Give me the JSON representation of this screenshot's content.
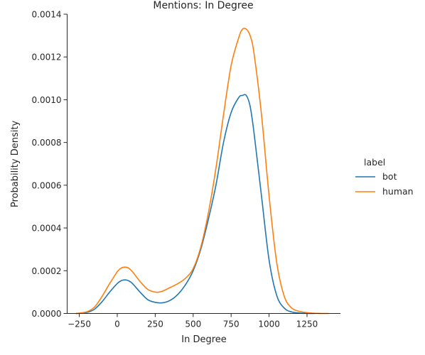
{
  "chart_data": {
    "type": "line",
    "title": "Mentions: In Degree",
    "xlabel": "In Degree",
    "ylabel": "Probability Density",
    "xlim": [
      -330,
      1470
    ],
    "ylim": [
      0,
      0.0014
    ],
    "x_ticks": [
      -250,
      0,
      250,
      500,
      750,
      1000,
      1250
    ],
    "x_tick_labels": [
      "−250",
      "0",
      "250",
      "500",
      "750",
      "1000",
      "1250"
    ],
    "y_ticks": [
      0,
      0.0002,
      0.0004,
      0.0006,
      0.0008,
      0.001,
      0.0012,
      0.0014
    ],
    "y_tick_labels": [
      "0.0000",
      "0.0002",
      "0.0004",
      "0.0006",
      "0.0008",
      "0.0010",
      "0.0012",
      "0.0014"
    ],
    "grid": false,
    "legend": {
      "title": "label",
      "placement": "right"
    },
    "series": [
      {
        "name": "bot",
        "color": "#1f77b4",
        "x": [
          -270,
          -200,
          -150,
          -100,
          -50,
          0,
          25,
          50,
          75,
          100,
          150,
          200,
          250,
          300,
          350,
          400,
          450,
          500,
          550,
          600,
          650,
          700,
          750,
          800,
          825,
          850,
          875,
          900,
          950,
          1000,
          1050,
          1100,
          1150,
          1200,
          1250,
          1300
        ],
        "y": [
          0.0,
          5e-06,
          2e-05,
          5.5e-05,
          0.0001,
          0.00014,
          0.000153,
          0.000157,
          0.000153,
          0.00014,
          0.0001,
          6.5e-05,
          5.2e-05,
          5e-05,
          6.2e-05,
          9e-05,
          0.000135,
          0.0002,
          0.0003,
          0.00044,
          0.0006,
          0.0008,
          0.00094,
          0.00101,
          0.00102,
          0.00102,
          0.00097,
          0.00085,
          0.00055,
          0.00025,
          8.5e-05,
          2.5e-05,
          7e-06,
          2e-06,
          5e-07,
          0.0
        ]
      },
      {
        "name": "human",
        "color": "#ff7f0e",
        "x": [
          -270,
          -200,
          -150,
          -100,
          -50,
          0,
          25,
          50,
          75,
          100,
          150,
          200,
          250,
          275,
          300,
          350,
          400,
          450,
          500,
          550,
          600,
          650,
          700,
          750,
          800,
          825,
          850,
          875,
          900,
          950,
          1000,
          1050,
          1100,
          1150,
          1200,
          1250,
          1300,
          1350,
          1390
        ],
        "y": [
          0.0,
          8e-06,
          3e-05,
          8e-05,
          0.00014,
          0.000195,
          0.000212,
          0.000217,
          0.000212,
          0.000195,
          0.00015,
          0.000113,
          0.0001,
          0.0001,
          0.000105,
          0.000122,
          0.00014,
          0.000165,
          0.00021,
          0.00031,
          0.00047,
          0.00068,
          0.00093,
          0.00116,
          0.00129,
          0.00133,
          0.00133,
          0.0013,
          0.00122,
          0.00093,
          0.00055,
          0.00024,
          8e-05,
          2.5e-05,
          1e-05,
          4e-06,
          1e-06,
          0.0,
          0.0
        ]
      }
    ]
  }
}
